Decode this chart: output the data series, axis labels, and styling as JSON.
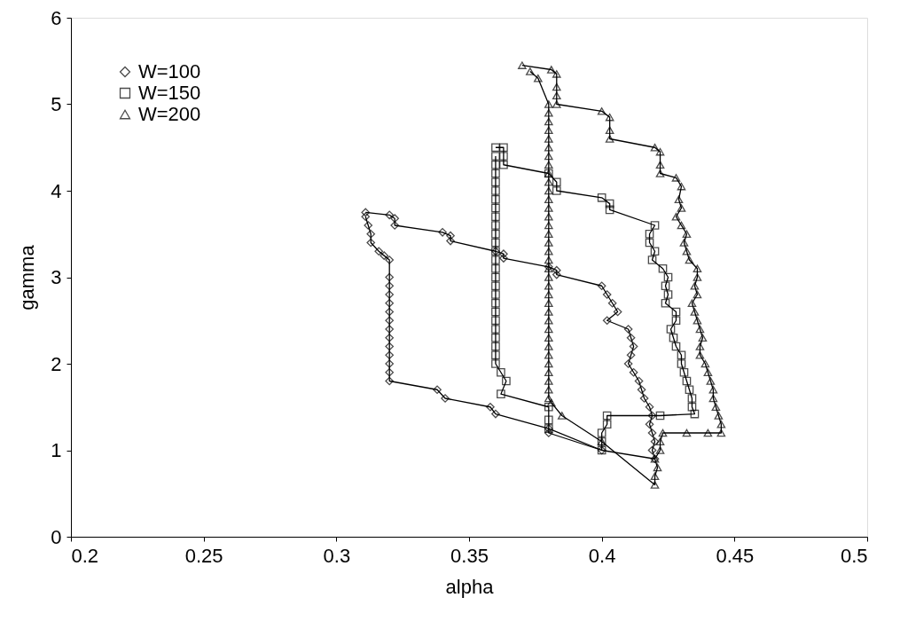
{
  "chart_data": {
    "type": "line",
    "xlabel": "alpha",
    "ylabel": "gamma",
    "xlim": [
      0.2,
      0.5
    ],
    "ylim": [
      0,
      6
    ],
    "xticks": [
      0.2,
      0.25,
      0.3,
      0.35,
      0.4,
      0.45,
      0.5
    ],
    "yticks": [
      0,
      1,
      2,
      3,
      4,
      5,
      6
    ],
    "grid": false,
    "legend": "top left",
    "line_style": "solid",
    "series": [
      {
        "name": "W=100",
        "color": "#000000",
        "marker": "diamond",
        "x": [
          0.311,
          0.32,
          0.322,
          0.322,
          0.34,
          0.343,
          0.343,
          0.36,
          0.363,
          0.363,
          0.38,
          0.383,
          0.383,
          0.4,
          0.402,
          0.404,
          0.406,
          0.402,
          0.41,
          0.411,
          0.412,
          0.411,
          0.41,
          0.412,
          0.414,
          0.415,
          0.416,
          0.418,
          0.419,
          0.418,
          0.419,
          0.42,
          0.419,
          0.42,
          0.4,
          0.38,
          0.38,
          0.36,
          0.358,
          0.341,
          0.338,
          0.32,
          0.32,
          0.32,
          0.32,
          0.32,
          0.32,
          0.32,
          0.32,
          0.32,
          0.32,
          0.32,
          0.32,
          0.32,
          0.32,
          0.318,
          0.316,
          0.313,
          0.313,
          0.312,
          0.311
        ],
        "values": [
          3.75,
          3.72,
          3.68,
          3.6,
          3.52,
          3.48,
          3.42,
          3.3,
          3.27,
          3.22,
          3.12,
          3.08,
          3.03,
          2.9,
          2.8,
          2.7,
          2.6,
          2.5,
          2.4,
          2.3,
          2.2,
          2.1,
          2.0,
          1.9,
          1.8,
          1.7,
          1.6,
          1.5,
          1.4,
          1.3,
          1.2,
          1.1,
          1.0,
          0.9,
          1.0,
          1.2,
          1.25,
          1.42,
          1.5,
          1.6,
          1.7,
          1.8,
          1.9,
          2.0,
          2.1,
          2.2,
          2.3,
          2.4,
          2.5,
          2.6,
          2.7,
          2.8,
          2.9,
          3.0,
          3.2,
          3.25,
          3.3,
          3.4,
          3.5,
          3.6,
          3.7
        ]
      },
      {
        "name": "W=150",
        "color": "#000000",
        "marker": "square",
        "x": [
          0.36,
          0.363,
          0.363,
          0.363,
          0.38,
          0.383,
          0.383,
          0.4,
          0.403,
          0.403,
          0.42,
          0.418,
          0.418,
          0.42,
          0.419,
          0.423,
          0.425,
          0.424,
          0.425,
          0.424,
          0.428,
          0.428,
          0.426,
          0.427,
          0.428,
          0.43,
          0.43,
          0.431,
          0.432,
          0.433,
          0.434,
          0.434,
          0.435,
          0.422,
          0.402,
          0.402,
          0.4,
          0.4,
          0.4,
          0.38,
          0.38,
          0.38,
          0.362,
          0.364,
          0.362,
          0.36,
          0.36,
          0.36,
          0.36,
          0.36,
          0.36,
          0.36,
          0.36,
          0.36,
          0.36,
          0.36,
          0.36,
          0.36,
          0.36,
          0.36,
          0.36,
          0.36,
          0.36,
          0.36,
          0.36,
          0.36,
          0.36,
          0.36,
          0.36,
          0.36
        ],
        "values": [
          4.5,
          4.5,
          4.4,
          4.3,
          4.2,
          4.1,
          4.0,
          3.92,
          3.85,
          3.78,
          3.6,
          3.5,
          3.4,
          3.3,
          3.2,
          3.1,
          3.0,
          2.9,
          2.8,
          2.7,
          2.6,
          2.5,
          2.4,
          2.3,
          2.2,
          2.1,
          2.0,
          1.9,
          1.8,
          1.7,
          1.6,
          1.5,
          1.42,
          1.4,
          1.4,
          1.3,
          1.2,
          1.1,
          1.0,
          1.25,
          1.35,
          1.5,
          1.65,
          1.8,
          1.9,
          2.0,
          2.1,
          2.2,
          2.3,
          2.4,
          2.5,
          2.6,
          2.7,
          2.8,
          2.9,
          3.0,
          3.1,
          3.2,
          3.3,
          3.4,
          3.5,
          3.6,
          3.7,
          3.8,
          3.9,
          4.0,
          4.1,
          4.2,
          4.3,
          4.4
        ]
      },
      {
        "name": "W=200",
        "color": "#000000",
        "marker": "triangle",
        "x": [
          0.37,
          0.381,
          0.383,
          0.383,
          0.383,
          0.383,
          0.4,
          0.403,
          0.403,
          0.403,
          0.42,
          0.422,
          0.422,
          0.422,
          0.428,
          0.43,
          0.429,
          0.43,
          0.428,
          0.43,
          0.432,
          0.431,
          0.432,
          0.433,
          0.436,
          0.436,
          0.435,
          0.436,
          0.434,
          0.435,
          0.436,
          0.437,
          0.438,
          0.437,
          0.437,
          0.439,
          0.44,
          0.441,
          0.442,
          0.442,
          0.443,
          0.444,
          0.445,
          0.445,
          0.44,
          0.432,
          0.423,
          0.422,
          0.422,
          0.42,
          0.421,
          0.42,
          0.42,
          0.4,
          0.385,
          0.381,
          0.38,
          0.38,
          0.38,
          0.38,
          0.38,
          0.38,
          0.38,
          0.38,
          0.38,
          0.38,
          0.38,
          0.38,
          0.38,
          0.38,
          0.38,
          0.38,
          0.38,
          0.38,
          0.38,
          0.38,
          0.38,
          0.38,
          0.38,
          0.38,
          0.38,
          0.38,
          0.38,
          0.38,
          0.38,
          0.38,
          0.38,
          0.38,
          0.38,
          0.38,
          0.38,
          0.376,
          0.373
        ],
        "values": [
          5.45,
          5.4,
          5.35,
          5.2,
          5.1,
          5.0,
          4.92,
          4.85,
          4.7,
          4.6,
          4.5,
          4.45,
          4.3,
          4.2,
          4.15,
          4.05,
          3.9,
          3.8,
          3.7,
          3.6,
          3.5,
          3.4,
          3.3,
          3.2,
          3.1,
          3.0,
          2.9,
          2.8,
          2.7,
          2.6,
          2.5,
          2.4,
          2.3,
          2.2,
          2.1,
          2.0,
          1.9,
          1.8,
          1.7,
          1.6,
          1.5,
          1.4,
          1.3,
          1.2,
          1.2,
          1.2,
          1.2,
          1.1,
          1.0,
          0.9,
          0.8,
          0.7,
          0.6,
          1.1,
          1.4,
          1.55,
          1.6,
          1.7,
          1.8,
          1.9,
          2.0,
          2.1,
          2.2,
          2.3,
          2.4,
          2.5,
          2.6,
          2.7,
          2.8,
          2.9,
          3.0,
          3.1,
          3.2,
          3.3,
          3.4,
          3.5,
          3.6,
          3.7,
          3.8,
          3.9,
          4.0,
          4.1,
          4.2,
          4.3,
          4.4,
          4.5,
          4.6,
          4.7,
          4.8,
          4.9,
          5.0,
          5.3,
          5.38
        ]
      }
    ]
  }
}
